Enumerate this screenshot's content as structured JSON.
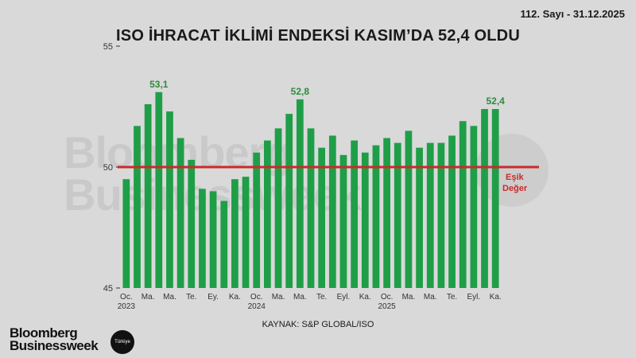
{
  "header": {
    "issue": "112. Sayı - 31.12.2025"
  },
  "footer": {
    "source": "KAYNAK: S&P GLOBAL/ISO",
    "logo_line1": "Bloomberg",
    "logo_line2": "Businessweek",
    "badge": "Türkiye"
  },
  "colors": {
    "bar": "#1f9e48",
    "threshold": "#cc2a2a",
    "label": "#2e8b3e",
    "axis": "#333333"
  },
  "chart_data": {
    "type": "bar",
    "title": "ISO İHRACAT İKLİMİ ENDEKSİ KASIM’DA 52,4 OLDU",
    "ylim": [
      45,
      55
    ],
    "yticks": [
      {
        "value": 55,
        "label": "55"
      },
      {
        "value": 50,
        "label": "50"
      },
      {
        "value": 45,
        "label": "45"
      }
    ],
    "values": [
      49.5,
      51.7,
      52.6,
      53.1,
      52.3,
      51.2,
      50.3,
      49.1,
      49.0,
      48.6,
      49.5,
      49.6,
      50.6,
      51.1,
      51.6,
      52.2,
      52.8,
      51.6,
      50.8,
      51.3,
      50.5,
      51.1,
      50.6,
      50.9,
      51.2,
      51.0,
      51.5,
      50.8,
      51.0,
      51.0,
      51.3,
      51.9,
      51.7,
      52.4,
      52.4
    ],
    "tick_labels": [
      {
        "index": 0,
        "line1": "Oc.",
        "line2": "2023"
      },
      {
        "index": 2,
        "line1": "Ma.",
        "line2": ""
      },
      {
        "index": 4,
        "line1": "Ma.",
        "line2": ""
      },
      {
        "index": 6,
        "line1": "Te.",
        "line2": ""
      },
      {
        "index": 8,
        "line1": "Ey.",
        "line2": ""
      },
      {
        "index": 10,
        "line1": "Ka.",
        "line2": ""
      },
      {
        "index": 12,
        "line1": "Oc.",
        "line2": "2024"
      },
      {
        "index": 14,
        "line1": "Ma.",
        "line2": ""
      },
      {
        "index": 16,
        "line1": "Ma.",
        "line2": ""
      },
      {
        "index": 18,
        "line1": "Te.",
        "line2": ""
      },
      {
        "index": 20,
        "line1": "Eyl.",
        "line2": ""
      },
      {
        "index": 22,
        "line1": "Ka.",
        "line2": ""
      },
      {
        "index": 24,
        "line1": "Oc.",
        "line2": "2025"
      },
      {
        "index": 26,
        "line1": "Ma.",
        "line2": ""
      },
      {
        "index": 28,
        "line1": "Ma.",
        "line2": ""
      },
      {
        "index": 30,
        "line1": "Te.",
        "line2": ""
      },
      {
        "index": 32,
        "line1": "Eyl.",
        "line2": ""
      },
      {
        "index": 34,
        "line1": "Ka.",
        "line2": ""
      }
    ],
    "annotations": [
      {
        "index": 3,
        "text": "53,1"
      },
      {
        "index": 16,
        "text": "52,8"
      },
      {
        "index": 34,
        "text": "52,4"
      }
    ],
    "threshold": {
      "value": 50,
      "label_line1": "Eşik",
      "label_line2": "Değer"
    }
  }
}
